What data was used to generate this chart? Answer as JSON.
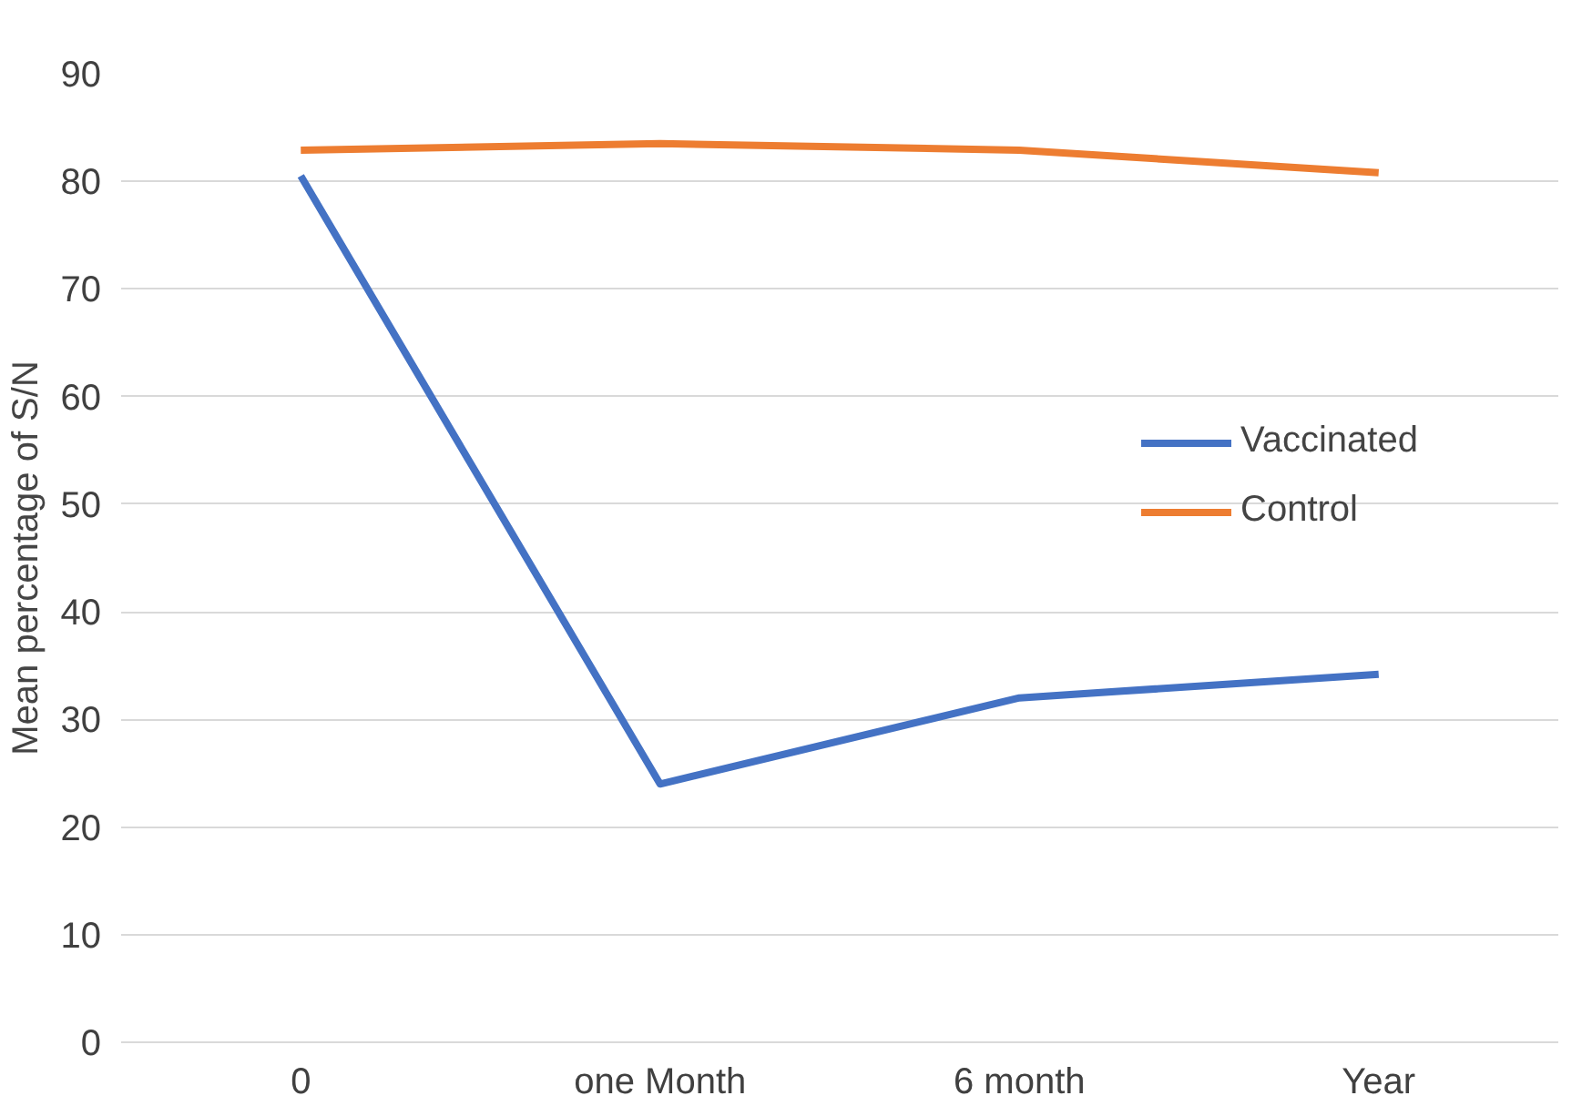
{
  "chart_data": {
    "type": "line",
    "ylabel": "Mean percentage of S/N",
    "categories": [
      "0",
      "one Month",
      "6 month",
      "Year"
    ],
    "series": [
      {
        "name": "Vaccinated",
        "color": "#4472c4",
        "values": [
          80.5,
          24.0,
          32.0,
          34.2
        ]
      },
      {
        "name": "Control",
        "color": "#ed7d31",
        "values": [
          82.9,
          83.5,
          82.9,
          80.8
        ]
      }
    ],
    "ylim": [
      0,
      90
    ],
    "yticks": [
      0,
      10,
      20,
      30,
      40,
      50,
      60,
      70,
      80,
      90
    ],
    "grid": "y",
    "legend": "right",
    "marker": "none",
    "line_style": "solid"
  }
}
